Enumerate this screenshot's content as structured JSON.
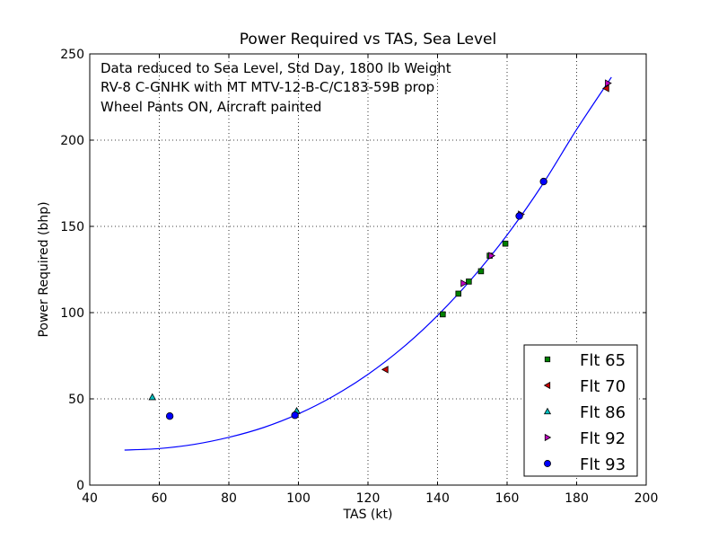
{
  "chart_data": {
    "type": "scatter",
    "title": "Power Required vs TAS, Sea Level",
    "xlabel": "TAS (kt)",
    "ylabel": "Power Required (bhp)",
    "xlim": [
      40,
      200
    ],
    "ylim": [
      0,
      250
    ],
    "xticks": [
      40,
      60,
      80,
      100,
      120,
      140,
      160,
      180,
      200
    ],
    "yticks": [
      0,
      50,
      100,
      150,
      200,
      250
    ],
    "grid": true,
    "legend_position": "bottom-right",
    "annotations": [
      "Data reduced to Sea Level, Std Day, 1800 lb Weight",
      "RV-8 C-GNHK with MT MTV-12-B-C/C183-59B prop",
      "Wheel Pants ON, Aircraft painted"
    ],
    "fit_curve": {
      "color": "#0000ff",
      "x": [
        50,
        60,
        70,
        80,
        90,
        100,
        110,
        120,
        130,
        140,
        150,
        160,
        170,
        180,
        190
      ],
      "y": [
        20.3,
        21.2,
        23.6,
        27.7,
        33.4,
        41.3,
        51.5,
        64.2,
        79.7,
        98.3,
        120.0,
        145.0,
        173.7,
        206.2,
        236.5
      ]
    },
    "series": [
      {
        "name": "Flt 65",
        "marker": "square",
        "color": "#008000",
        "points": [
          [
            141.5,
            99
          ],
          [
            146,
            111
          ],
          [
            149,
            118
          ],
          [
            152.5,
            124
          ],
          [
            155,
            133
          ],
          [
            159.5,
            140
          ]
        ]
      },
      {
        "name": "Flt 70",
        "marker": "triangle-left",
        "color": "#cc0000",
        "points": [
          [
            125,
            67
          ],
          [
            188.5,
            230
          ]
        ]
      },
      {
        "name": "Flt 86",
        "marker": "triangle-up",
        "color": "#00bfbf",
        "points": [
          [
            58,
            51
          ],
          [
            99.5,
            43
          ]
        ]
      },
      {
        "name": "Flt 92",
        "marker": "triangle-right",
        "color": "#bf00bf",
        "points": [
          [
            147.5,
            117
          ],
          [
            155.5,
            133
          ],
          [
            164,
            157
          ],
          [
            189,
            233
          ]
        ]
      },
      {
        "name": "Flt 93",
        "marker": "circle",
        "color": "#0000ff",
        "points": [
          [
            63,
            40
          ],
          [
            99,
            40.5
          ],
          [
            163.5,
            156
          ],
          [
            170.5,
            176
          ]
        ]
      }
    ]
  }
}
